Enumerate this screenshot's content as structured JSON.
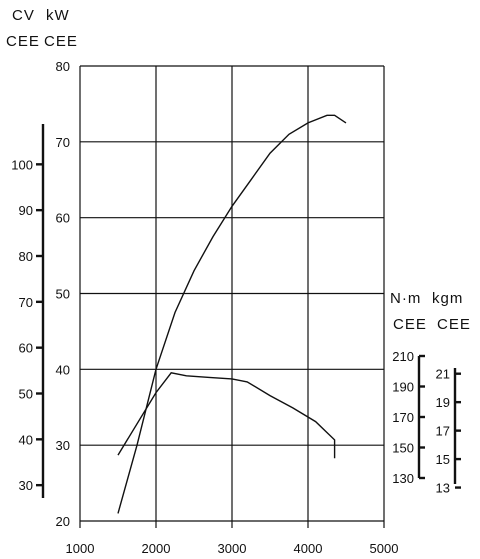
{
  "chart_data": [
    {
      "type": "line",
      "title": "",
      "x_ticks": [
        1000,
        2000,
        3000,
        4000,
        5000
      ],
      "xlim": [
        1000,
        5000
      ],
      "grid": true,
      "axes": {
        "kw": {
          "units": [
            "kW",
            "CEE"
          ],
          "ticks": [
            20,
            30,
            40,
            50,
            60,
            70,
            80
          ],
          "range": [
            20,
            80
          ]
        },
        "cv": {
          "units": [
            "CV",
            "CEE"
          ],
          "ticks": [
            30,
            40,
            50,
            60,
            70,
            80,
            90,
            100
          ],
          "range": [
            27.2,
            108.8
          ]
        },
        "nm": {
          "units": [
            "N·m",
            "CEE"
          ],
          "ticks": [
            130,
            150,
            170,
            190,
            210
          ],
          "range": [
            130,
            210
          ]
        },
        "kgm": {
          "units": [
            "kgm",
            "CEE"
          ],
          "ticks": [
            13,
            15,
            17,
            19,
            21
          ],
          "range": [
            13.25,
            21.4
          ]
        }
      },
      "series": [
        {
          "axis": "kw",
          "points": [
            [
              1500,
              21
            ],
            [
              1750,
              30
            ],
            [
              2000,
              40
            ],
            [
              2250,
              47.5
            ],
            [
              2500,
              53
            ],
            [
              2750,
              57.5
            ],
            [
              3000,
              61.5
            ],
            [
              3250,
              65
            ],
            [
              3500,
              68.5
            ],
            [
              3750,
              71
            ],
            [
              4000,
              72.5
            ],
            [
              4250,
              73.5
            ],
            [
              4350,
              73.5
            ],
            [
              4500,
              72.5
            ]
          ]
        },
        {
          "axis": "nm",
          "points": [
            [
              1500,
              145
            ],
            [
              2000,
              186
            ],
            [
              2200,
              199
            ],
            [
              2400,
              197
            ],
            [
              2700,
              196
            ],
            [
              3000,
              195
            ],
            [
              3200,
              193
            ],
            [
              3500,
              184
            ],
            [
              3800,
              176
            ],
            [
              4100,
              167
            ],
            [
              4350,
              155
            ],
            [
              4350,
              143
            ]
          ]
        }
      ]
    }
  ]
}
